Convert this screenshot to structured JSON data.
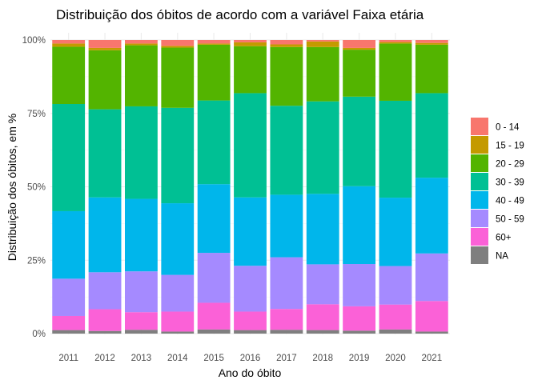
{
  "chart_data": {
    "type": "bar",
    "stacked": "percent",
    "title": "Distribuição dos óbitos de acordo com a variável Faixa etária",
    "xlabel": "Ano do óbito",
    "ylabel": "Distribuição dos óbitos, em %",
    "ylim": [
      0,
      100
    ],
    "yticks": [
      "0%",
      "25%",
      "50%",
      "75%",
      "100%"
    ],
    "grid": true,
    "legend_position": "right",
    "categories": [
      "2011",
      "2012",
      "2013",
      "2014",
      "2015",
      "2016",
      "2017",
      "2018",
      "2019",
      "2020",
      "2021"
    ],
    "series": [
      {
        "name": "0 - 14",
        "color": "#F8766D",
        "values": [
          1.2,
          2.7,
          1.2,
          2.0,
          1.2,
          0.8,
          1.5,
          0.5,
          2.7,
          0.7,
          1.0
        ]
      },
      {
        "name": "15 - 19",
        "color": "#C49A00",
        "values": [
          1.1,
          0.8,
          0.6,
          0.6,
          0.4,
          1.3,
          0.9,
          1.9,
          0.6,
          0.5,
          0.6
        ]
      },
      {
        "name": "20 - 29",
        "color": "#53B400",
        "values": [
          19.5,
          20.1,
          20.8,
          20.5,
          19.0,
          16.0,
          20.0,
          18.5,
          16.0,
          19.5,
          16.5
        ]
      },
      {
        "name": "30 - 39",
        "color": "#00C094",
        "values": [
          36.5,
          30.0,
          31.5,
          32.5,
          28.5,
          35.5,
          30.3,
          31.5,
          30.5,
          33.0,
          28.8
        ]
      },
      {
        "name": "40 - 49",
        "color": "#00B6EB",
        "values": [
          23.0,
          25.5,
          24.7,
          24.4,
          23.4,
          23.3,
          21.3,
          24.0,
          26.5,
          23.3,
          25.8
        ]
      },
      {
        "name": "50 - 59",
        "color": "#A58AFF",
        "values": [
          12.7,
          12.6,
          13.9,
          12.5,
          17.0,
          15.6,
          17.6,
          13.6,
          14.4,
          13.1,
          16.2
        ]
      },
      {
        "name": "60+",
        "color": "#FB61D7",
        "values": [
          4.8,
          7.4,
          6.0,
          6.8,
          9.1,
          6.3,
          7.1,
          8.8,
          8.3,
          8.5,
          10.4
        ]
      },
      {
        "name": "NA",
        "color": "#7F7F7F",
        "values": [
          1.2,
          0.9,
          1.3,
          0.7,
          1.4,
          1.2,
          1.3,
          1.2,
          1.0,
          1.4,
          0.7
        ]
      }
    ]
  }
}
